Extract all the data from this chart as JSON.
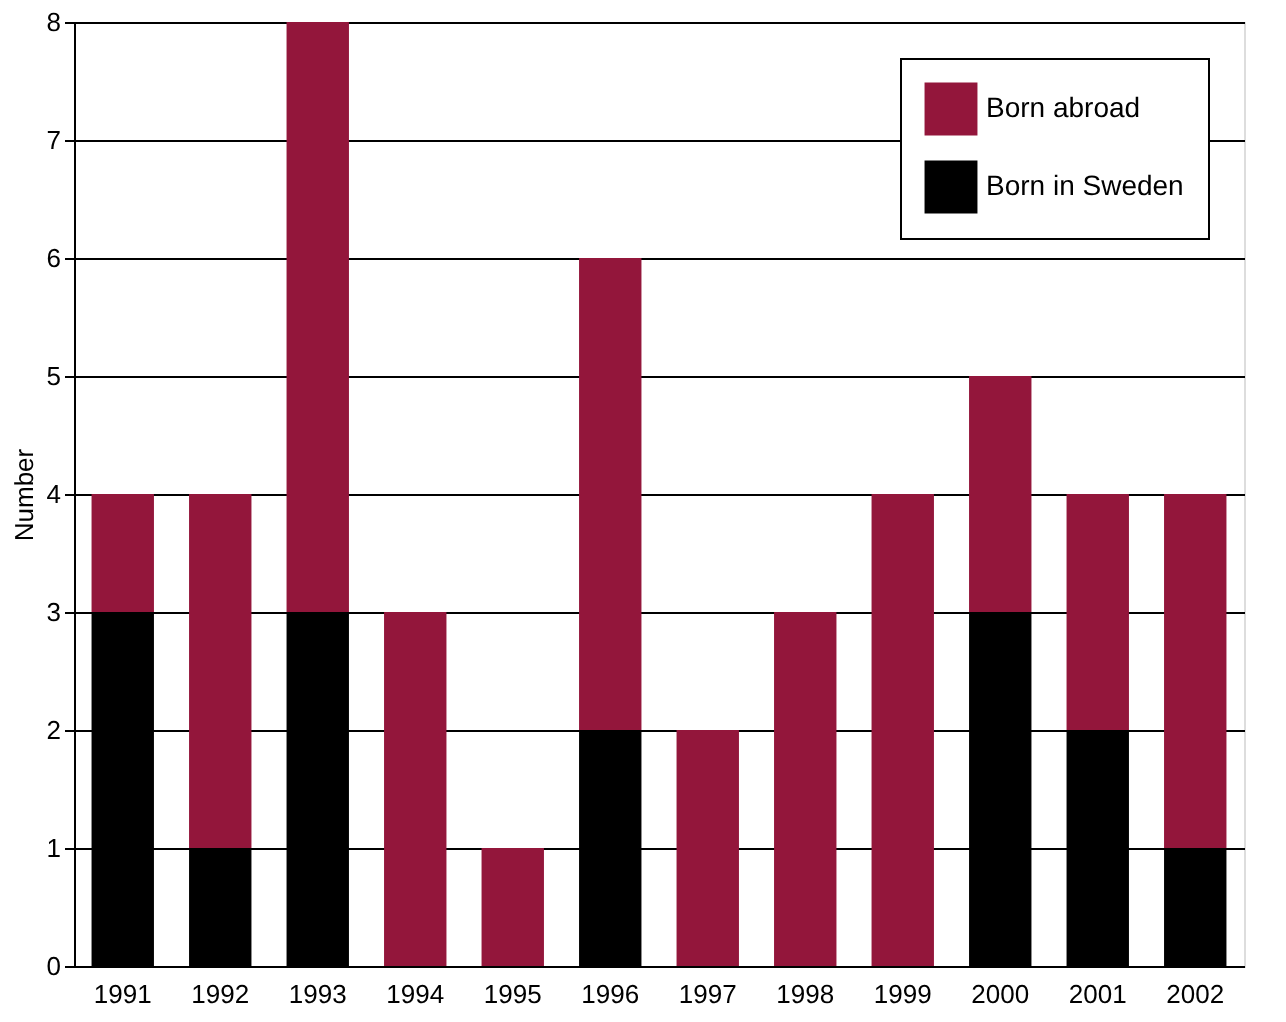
{
  "chart_data": {
    "type": "bar",
    "stacked": true,
    "ylabel": "Number",
    "categories": [
      "1991",
      "1992",
      "1993",
      "1994",
      "1995",
      "1996",
      "1997",
      "1998",
      "1999",
      "2000",
      "2001",
      "2002"
    ],
    "series": [
      {
        "name": "Born in Sweden",
        "color": "#000000",
        "values": [
          3,
          1,
          3,
          0,
          0,
          2,
          0,
          0,
          0,
          3,
          2,
          1
        ]
      },
      {
        "name": "Born abroad",
        "color": "#93163b",
        "values": [
          1,
          3,
          5,
          3,
          1,
          4,
          2,
          3,
          4,
          2,
          2,
          3
        ]
      }
    ],
    "ylim": [
      0,
      8
    ],
    "yticks": [
      0,
      1,
      2,
      3,
      4,
      5,
      6,
      7,
      8
    ],
    "grid": "y",
    "legend": "top right"
  }
}
